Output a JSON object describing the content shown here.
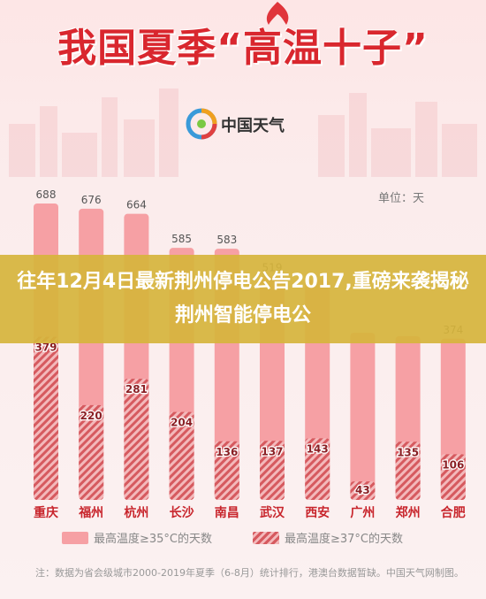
{
  "header": {
    "title": "我国夏季“高温十子”",
    "brand": "中国天气"
  },
  "overlay": {
    "headline": "往年12月4日最新荆州停电公告2017,重磅来袭揭秘荆州智能停电公"
  },
  "chart_data": {
    "type": "bar",
    "unit_label": "单位：天",
    "categories": [
      "重庆",
      "福州",
      "杭州",
      "长沙",
      "南昌",
      "武汉",
      "西安",
      "广州",
      "郑州",
      "合肥"
    ],
    "series": [
      {
        "name": "最高温度≥35°C的天数",
        "values": [
          688,
          676,
          664,
          585,
          583,
          519,
          510,
          388,
          380,
          374
        ],
        "style": "solid",
        "color": "#f6a0a4"
      },
      {
        "name": "最高温度≥37°C的天数",
        "values": [
          379,
          220,
          281,
          204,
          136,
          137,
          143,
          43,
          135,
          106
        ],
        "style": "hatched",
        "color": "#d65a5f"
      }
    ],
    "visible_top_labels": [
      688,
      676,
      664,
      585,
      583,
      519,
      null,
      null,
      null,
      374
    ],
    "ylim": [
      0,
      720
    ],
    "grid": false,
    "legend_position": "bottom"
  },
  "footnote": "注：数据为省会级城市2000-2019年夏季（6-8月）统计排行，港澳台数据暂缺。中国天气网制图。"
}
